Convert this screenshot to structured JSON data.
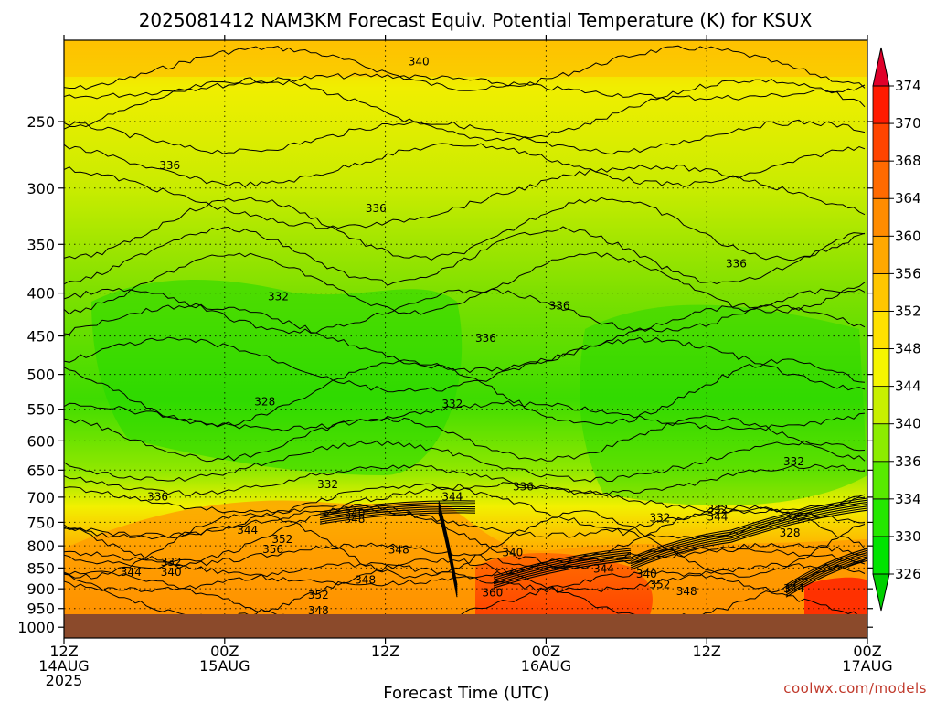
{
  "title": "2025081412 NAM3KM Forecast Equiv. Potential Temperature (K) for KSUX",
  "credit": "coolwx.com/models",
  "chart_data": {
    "type": "heatmap",
    "title": "2025081412 NAM3KM Forecast Equiv. Potential Temperature (K) for KSUX",
    "xlabel": "Forecast Time (UTC)",
    "ylabel": "",
    "x_range_hours": [
      0,
      60
    ],
    "x_ticks": [
      {
        "hour": 0,
        "line1": "12Z",
        "line2": "14AUG",
        "line3": "2025"
      },
      {
        "hour": 12,
        "line1": "00Z",
        "line2": "15AUG",
        "line3": ""
      },
      {
        "hour": 24,
        "line1": "12Z",
        "line2": "",
        "line3": ""
      },
      {
        "hour": 36,
        "line1": "00Z",
        "line2": "16AUG",
        "line3": ""
      },
      {
        "hour": 48,
        "line1": "12Z",
        "line2": "",
        "line3": ""
      },
      {
        "hour": 60,
        "line1": "00Z",
        "line2": "17AUG",
        "line3": ""
      }
    ],
    "y_scale": "log",
    "y_ticks": [
      250,
      300,
      350,
      400,
      450,
      500,
      550,
      600,
      650,
      700,
      750,
      800,
      850,
      900,
      950,
      1000
    ],
    "y_range": [
      200,
      1030
    ],
    "surface_pressure": 965,
    "surface_color": "#8b4a2b",
    "colorbar": {
      "ticks": [
        326,
        330,
        334,
        336,
        340,
        344,
        348,
        352,
        356,
        360,
        364,
        368,
        370,
        374
      ],
      "colors": [
        "#00e400",
        "#24e800",
        "#58ea00",
        "#8cec00",
        "#c8f000",
        "#f5f500",
        "#ffe100",
        "#ffc600",
        "#ffa800",
        "#ff8c00",
        "#ff6a00",
        "#ff4400",
        "#ff1a00"
      ],
      "min_arrow_color": "#00d000",
      "max_arrow_color": "#e0002a"
    },
    "contour_labels": [
      {
        "value": "340",
        "hour": 26.5,
        "p": 212
      },
      {
        "value": "336",
        "hour": 7.9,
        "p": 282
      },
      {
        "value": "336",
        "hour": 23.3,
        "p": 317
      },
      {
        "value": "336",
        "hour": 50.2,
        "p": 369
      },
      {
        "value": "332",
        "hour": 16.0,
        "p": 404
      },
      {
        "value": "336",
        "hour": 37.0,
        "p": 414
      },
      {
        "value": "336",
        "hour": 31.5,
        "p": 453
      },
      {
        "value": "332",
        "hour": 29.0,
        "p": 542
      },
      {
        "value": "328",
        "hour": 15.0,
        "p": 539
      },
      {
        "value": "332",
        "hour": 54.5,
        "p": 635
      },
      {
        "value": "332",
        "hour": 19.7,
        "p": 676
      },
      {
        "value": "336",
        "hour": 7.0,
        "p": 699
      },
      {
        "value": "336",
        "hour": 34.3,
        "p": 680
      },
      {
        "value": "344",
        "hour": 29.0,
        "p": 699
      },
      {
        "value": "340",
        "hour": 21.7,
        "p": 732
      },
      {
        "value": "348",
        "hour": 21.7,
        "p": 744
      },
      {
        "value": "332",
        "hour": 44.5,
        "p": 741
      },
      {
        "value": "332",
        "hour": 48.8,
        "p": 723
      },
      {
        "value": "344",
        "hour": 48.8,
        "p": 739
      },
      {
        "value": "344",
        "hour": 13.7,
        "p": 766
      },
      {
        "value": "328",
        "hour": 54.2,
        "p": 772
      },
      {
        "value": "352",
        "hour": 16.3,
        "p": 786
      },
      {
        "value": "356",
        "hour": 15.6,
        "p": 808
      },
      {
        "value": "348",
        "hour": 25.0,
        "p": 809
      },
      {
        "value": "340",
        "hour": 33.5,
        "p": 815
      },
      {
        "value": "332",
        "hour": 8.0,
        "p": 837
      },
      {
        "value": "344",
        "hour": 5.0,
        "p": 860
      },
      {
        "value": "340",
        "hour": 8.0,
        "p": 860
      },
      {
        "value": "344",
        "hour": 40.3,
        "p": 852
      },
      {
        "value": "340",
        "hour": 43.5,
        "p": 864
      },
      {
        "value": "348",
        "hour": 22.5,
        "p": 878
      },
      {
        "value": "352",
        "hour": 44.5,
        "p": 889
      },
      {
        "value": "348",
        "hour": 46.5,
        "p": 906
      },
      {
        "value": "344",
        "hour": 54.5,
        "p": 900
      },
      {
        "value": "360",
        "hour": 32.0,
        "p": 910
      },
      {
        "value": "352",
        "hour": 19.0,
        "p": 915
      },
      {
        "value": "348",
        "hour": 19.0,
        "p": 955
      }
    ]
  }
}
